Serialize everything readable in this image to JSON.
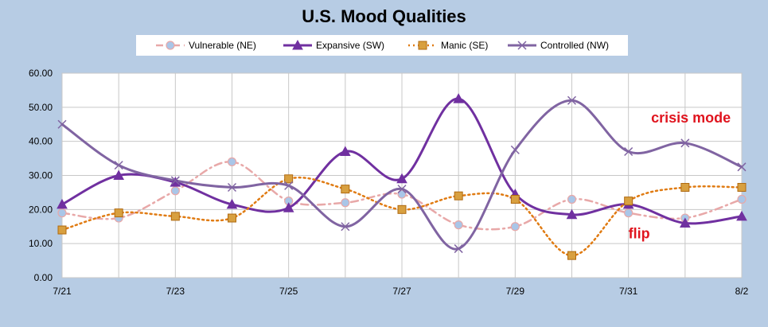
{
  "chart_data": {
    "type": "line",
    "title": "U.S.  Mood Qualities",
    "xlabel": "",
    "ylabel": "",
    "ylim": [
      0,
      60
    ],
    "y_ticks": [
      "0.00",
      "10.00",
      "20.00",
      "30.00",
      "40.00",
      "50.00",
      "60.00"
    ],
    "x": [
      "7/21",
      "7/22",
      "7/23",
      "7/24",
      "7/25",
      "7/26",
      "7/27",
      "7/28",
      "7/29",
      "7/30",
      "7/31",
      "8/1",
      "8/2"
    ],
    "x_tick_labels": [
      "7/21",
      "7/23",
      "7/25",
      "7/27",
      "7/29",
      "7/31",
      "8/2"
    ],
    "grid": true,
    "legend_position": "top",
    "series": [
      {
        "name": "Vulnerable (NE)",
        "color": "#e8a8a8",
        "marker": "circle",
        "marker_fill": "#a9c6e8",
        "line_style": "dash-dot",
        "values": [
          19,
          17.5,
          25.5,
          34,
          22.5,
          22,
          24.5,
          15.5,
          15,
          23,
          19,
          17.5,
          23
        ]
      },
      {
        "name": "Expansive (SW)",
        "color": "#7030a0",
        "marker": "triangle",
        "line_style": "solid",
        "values": [
          21.5,
          30,
          28,
          21.5,
          20.5,
          37,
          29,
          52.5,
          24.5,
          18.5,
          21.5,
          16,
          18
        ]
      },
      {
        "name": "Manic (SE)",
        "color": "#e07b12",
        "marker": "square",
        "marker_fill": "#d8a040",
        "line_style": "dotted",
        "values": [
          14,
          19,
          18,
          17.5,
          29,
          26,
          20,
          24,
          23,
          6.5,
          22.5,
          26.5,
          26.5
        ]
      },
      {
        "name": "Controlled (NW)",
        "color": "#8064a2",
        "marker": "x",
        "line_style": "solid",
        "values": [
          45,
          33,
          28.5,
          26.5,
          27,
          15,
          26,
          8.5,
          37.5,
          52,
          37,
          39.5,
          32.5
        ]
      }
    ],
    "annotations": [
      {
        "text": "crisis mode",
        "color": "#e0141e"
      },
      {
        "text": "flip",
        "color": "#e0141e"
      }
    ]
  }
}
